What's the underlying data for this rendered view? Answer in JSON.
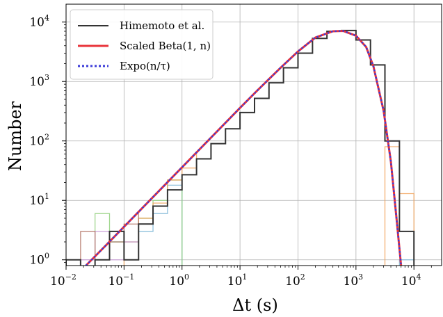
{
  "chart_data": {
    "type": "line",
    "title": "",
    "xlabel": "Δt (s)",
    "ylabel": "Number",
    "xscale": "log",
    "yscale": "log",
    "xlim": [
      0.01,
      30000
    ],
    "ylim": [
      0.8,
      20000
    ],
    "grid": true,
    "legend_position": "top-left",
    "x_ticks": [
      {
        "base": "10",
        "exp": "−2",
        "value": 0.01
      },
      {
        "base": "10",
        "exp": "−1",
        "value": 0.1
      },
      {
        "base": "10",
        "exp": "0",
        "value": 1
      },
      {
        "base": "10",
        "exp": "1",
        "value": 10
      },
      {
        "base": "10",
        "exp": "2",
        "value": 100
      },
      {
        "base": "10",
        "exp": "3",
        "value": 1000
      },
      {
        "base": "10",
        "exp": "4",
        "value": 10000
      }
    ],
    "y_ticks": [
      {
        "base": "10",
        "exp": "0",
        "value": 1
      },
      {
        "base": "10",
        "exp": "1",
        "value": 10
      },
      {
        "base": "10",
        "exp": "2",
        "value": 100
      },
      {
        "base": "10",
        "exp": "3",
        "value": 1000
      },
      {
        "base": "10",
        "exp": "4",
        "value": 10000
      }
    ],
    "series": [
      {
        "name": "Himemoto et al.",
        "style": "step",
        "color": "#333333",
        "bin_edges": [
          0.01,
          0.0178,
          0.0316,
          0.0562,
          0.1,
          0.178,
          0.316,
          0.562,
          1,
          1.78,
          3.16,
          5.62,
          10,
          17.8,
          31.6,
          56.2,
          100,
          178,
          316,
          562,
          1000,
          1780,
          3160,
          5620,
          10000
        ],
        "counts": [
          1,
          0,
          1,
          3,
          1,
          4,
          8,
          15,
          27,
          50,
          90,
          160,
          300,
          520,
          950,
          1700,
          3000,
          5300,
          7000,
          7200,
          5000,
          1900,
          100,
          3
        ]
      },
      {
        "name": "Scaled Beta(1, n)",
        "style": "line",
        "color": "#e8333a",
        "x": [
          0.022,
          0.05,
          0.1,
          0.2,
          0.5,
          1,
          2,
          5,
          10,
          20,
          50,
          100,
          200,
          400,
          600,
          1000,
          1500,
          2000,
          3000,
          4000,
          5000,
          6000
        ],
        "y": [
          0.8,
          1.8,
          3.6,
          7.2,
          18,
          36,
          72,
          180,
          360,
          710,
          1700,
          3200,
          5500,
          7000,
          7100,
          5900,
          3800,
          1800,
          320,
          45,
          5,
          0.8
        ]
      },
      {
        "name": "Expo(n/τ)",
        "style": "dotted",
        "color": "#3b3bd8",
        "x": [
          0.022,
          0.05,
          0.1,
          0.2,
          0.5,
          1,
          2,
          5,
          10,
          20,
          50,
          100,
          200,
          400,
          600,
          1000,
          1500,
          2000,
          3000,
          4000,
          5000,
          6000
        ],
        "y": [
          0.8,
          1.8,
          3.6,
          7.2,
          18,
          36,
          72,
          180,
          360,
          710,
          1700,
          3200,
          5500,
          7000,
          7100,
          5900,
          3800,
          1800,
          320,
          45,
          5,
          0.8
        ]
      }
    ],
    "faint_histograms": [
      {
        "color": "#7bb6d6",
        "bin_edges": [
          0.0316,
          0.0562,
          0.1,
          0.178,
          0.316,
          0.562,
          1
        ],
        "counts": [
          1,
          2,
          2,
          3,
          6,
          18
        ]
      },
      {
        "color": "#8fcf7a",
        "bin_edges": [
          0.0316,
          0.0562,
          0.1,
          0.178,
          0.316,
          0.562,
          1
        ],
        "counts": [
          6,
          2,
          1,
          5,
          10,
          22
        ]
      },
      {
        "color": "#f1a35a",
        "bin_edges": [
          0.1,
          0.178,
          0.316,
          0.562,
          1,
          1.78
        ],
        "counts": [
          2,
          5,
          9,
          22,
          35,
          60
        ]
      },
      {
        "color": "#c89ad8",
        "bin_edges": [
          0.0178,
          0.0316,
          0.0562,
          0.1,
          0.178,
          0.316
        ],
        "counts": [
          1,
          3,
          1,
          2,
          4,
          8
        ]
      },
      {
        "color": "#b07060",
        "bin_edges": [
          0.0178,
          0.0316,
          0.0562,
          0.1,
          0.178
        ],
        "counts": [
          3,
          1,
          2,
          4,
          6
        ]
      },
      {
        "color": "#f1a35a",
        "bin_edges": [
          3160,
          5620,
          10000
        ],
        "counts": [
          80,
          13,
          1
        ]
      },
      {
        "color": "#7bb6d6",
        "bin_edges": [
          5620,
          10000
        ],
        "counts": [
          1
        ]
      }
    ]
  }
}
